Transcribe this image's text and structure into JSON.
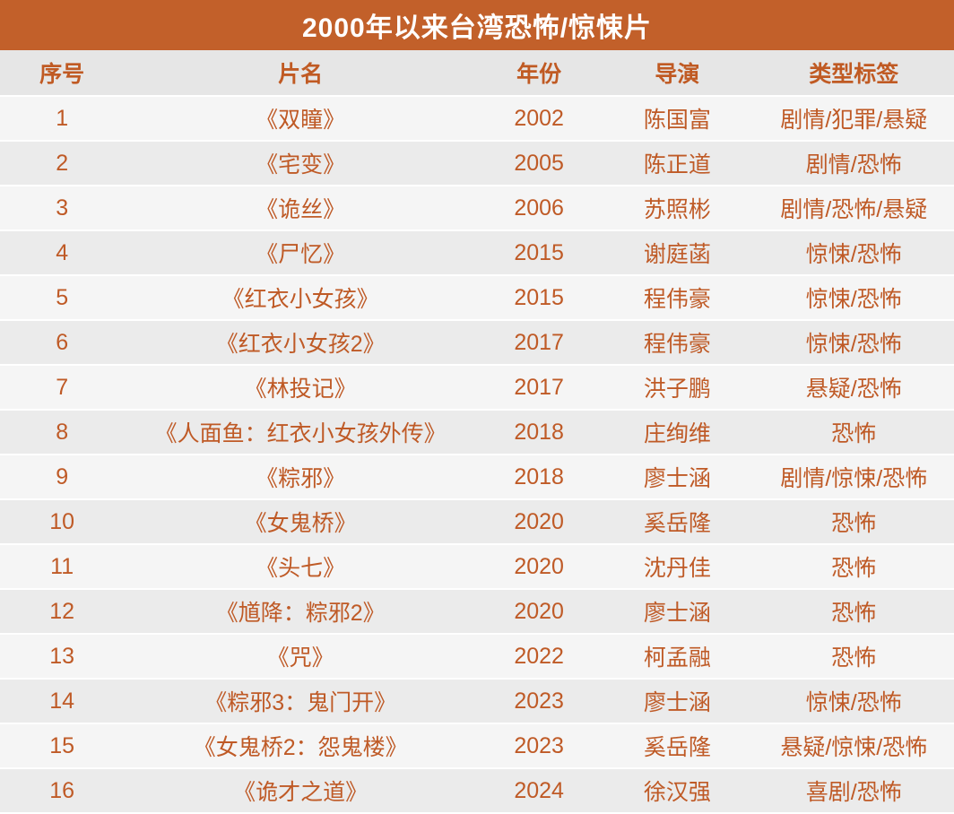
{
  "title": "2000年以来台湾恐怖/惊悚片",
  "colors": {
    "title_bar_bg": "#c2602a",
    "title_text": "#ffffff",
    "table_text": "#bf5a26",
    "header_row_bg": "#e6e6e6",
    "row_odd_bg": "#f5f5f5",
    "row_even_bg": "#ebebeb",
    "row_divider": "#ffffff"
  },
  "table": {
    "headers": [
      "序号",
      "片名",
      "年份",
      "导演",
      "类型标签"
    ],
    "column_keys": [
      "index",
      "film-title",
      "year",
      "director",
      "genre-tags"
    ],
    "rows": [
      [
        "1",
        "《双瞳》",
        "2002",
        "陈国富",
        "剧情/犯罪/悬疑"
      ],
      [
        "2",
        "《宅变》",
        "2005",
        "陈正道",
        "剧情/恐怖"
      ],
      [
        "3",
        "《诡丝》",
        "2006",
        "苏照彬",
        "剧情/恐怖/悬疑"
      ],
      [
        "4",
        "《尸忆》",
        "2015",
        "谢庭菡",
        "惊悚/恐怖"
      ],
      [
        "5",
        "《红衣小女孩》",
        "2015",
        "程伟豪",
        "惊悚/恐怖"
      ],
      [
        "6",
        "《红衣小女孩2》",
        "2017",
        "程伟豪",
        "惊悚/恐怖"
      ],
      [
        "7",
        "《林投记》",
        "2017",
        "洪子鹏",
        "悬疑/恐怖"
      ],
      [
        "8",
        "《人面鱼：红衣小女孩外传》",
        "2018",
        "庄绚维",
        "恐怖"
      ],
      [
        "9",
        "《粽邪》",
        "2018",
        "廖士涵",
        "剧情/惊悚/恐怖"
      ],
      [
        "10",
        "《女鬼桥》",
        "2020",
        "奚岳隆",
        "恐怖"
      ],
      [
        "11",
        "《头七》",
        "2020",
        "沈丹佳",
        "恐怖"
      ],
      [
        "12",
        "《馗降：粽邪2》",
        "2020",
        "廖士涵",
        "恐怖"
      ],
      [
        "13",
        "《咒》",
        "2022",
        "柯孟融",
        "恐怖"
      ],
      [
        "14",
        "《粽邪3：鬼门开》",
        "2023",
        "廖士涵",
        "惊悚/恐怖"
      ],
      [
        "15",
        "《女鬼桥2：怨鬼楼》",
        "2023",
        "奚岳隆",
        "悬疑/惊悚/恐怖"
      ],
      [
        "16",
        "《诡才之道》",
        "2024",
        "徐汉强",
        "喜剧/恐怖"
      ]
    ]
  },
  "chart_data": {
    "type": "table",
    "title": "2000年以来台湾恐怖/惊悚片",
    "columns": [
      "序号",
      "片名",
      "年份",
      "导演",
      "类型标签"
    ],
    "rows": [
      [
        "1",
        "《双瞳》",
        "2002",
        "陈国富",
        "剧情/犯罪/悬疑"
      ],
      [
        "2",
        "《宅变》",
        "2005",
        "陈正道",
        "剧情/恐怖"
      ],
      [
        "3",
        "《诡丝》",
        "2006",
        "苏照彬",
        "剧情/恐怖/悬疑"
      ],
      [
        "4",
        "《尸忆》",
        "2015",
        "谢庭菡",
        "惊悚/恐怖"
      ],
      [
        "5",
        "《红衣小女孩》",
        "2015",
        "程伟豪",
        "惊悚/恐怖"
      ],
      [
        "6",
        "《红衣小女孩2》",
        "2017",
        "程伟豪",
        "惊悚/恐怖"
      ],
      [
        "7",
        "《林投记》",
        "2017",
        "洪子鹏",
        "悬疑/恐怖"
      ],
      [
        "8",
        "《人面鱼：红衣小女孩外传》",
        "2018",
        "庄绚维",
        "恐怖"
      ],
      [
        "9",
        "《粽邪》",
        "2018",
        "廖士涵",
        "剧情/惊悚/恐怖"
      ],
      [
        "10",
        "《女鬼桥》",
        "2020",
        "奚岳隆",
        "恐怖"
      ],
      [
        "11",
        "《头七》",
        "2020",
        "沈丹佳",
        "恐怖"
      ],
      [
        "12",
        "《馗降：粽邪2》",
        "2020",
        "廖士涵",
        "恐怖"
      ],
      [
        "13",
        "《咒》",
        "2022",
        "柯孟融",
        "恐怖"
      ],
      [
        "14",
        "《粽邪3：鬼门开》",
        "2023",
        "廖士涵",
        "惊悚/恐怖"
      ],
      [
        "15",
        "《女鬼桥2：怨鬼楼》",
        "2023",
        "奚岳隆",
        "悬疑/惊悚/恐怖"
      ],
      [
        "16",
        "《诡才之道》",
        "2024",
        "徐汉强",
        "喜剧/恐怖"
      ]
    ]
  }
}
